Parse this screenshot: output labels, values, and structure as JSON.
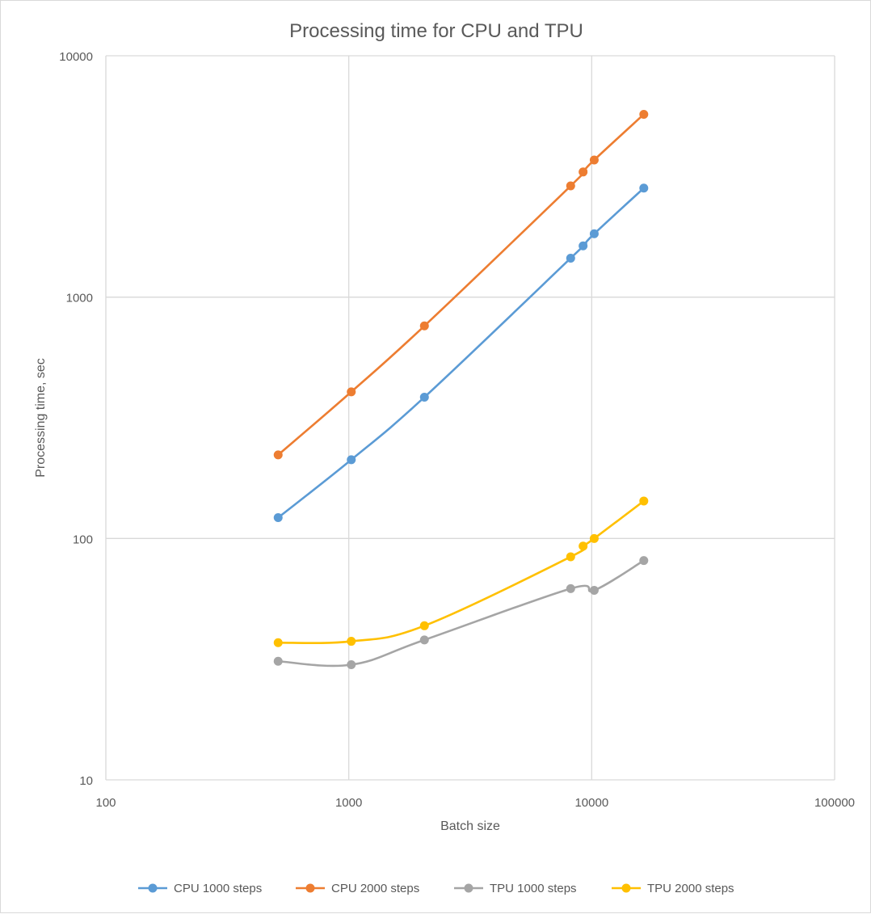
{
  "chart_data": {
    "type": "line",
    "title": "Processing time for CPU and TPU",
    "xlabel": "Batch size",
    "ylabel": "Processing time, sec",
    "xscale": "log",
    "yscale": "log",
    "xlim": [
      100,
      100000
    ],
    "ylim": [
      10,
      10000
    ],
    "xticks": [
      "100",
      "1000",
      "10000",
      "100000"
    ],
    "yticks": [
      "10",
      "100",
      "1000",
      "10000"
    ],
    "grid": true,
    "legend_position": "bottom",
    "series": [
      {
        "name": "CPU 1000 steps",
        "color": "#5b9bd5",
        "x": [
          512,
          1024,
          2048,
          8192,
          9216,
          10240,
          16384
        ],
        "y": [
          122,
          212,
          385,
          1450,
          1630,
          1830,
          2830
        ]
      },
      {
        "name": "CPU 2000 steps",
        "color": "#ed7d31",
        "x": [
          512,
          1024,
          2048,
          8192,
          9216,
          10240,
          16384
        ],
        "y": [
          222,
          405,
          760,
          2890,
          3300,
          3700,
          5720
        ]
      },
      {
        "name": "TPU 1000 steps",
        "color": "#a5a5a5",
        "x": [
          512,
          1024,
          2048,
          8192,
          10240,
          16384
        ],
        "y": [
          31,
          30,
          38,
          62,
          61,
          81
        ]
      },
      {
        "name": "TPU 2000 steps",
        "color": "#ffc000",
        "x": [
          512,
          1024,
          2048,
          8192,
          9216,
          10240,
          16384
        ],
        "y": [
          37,
          37.5,
          43.5,
          84,
          93,
          100,
          143
        ]
      }
    ]
  }
}
